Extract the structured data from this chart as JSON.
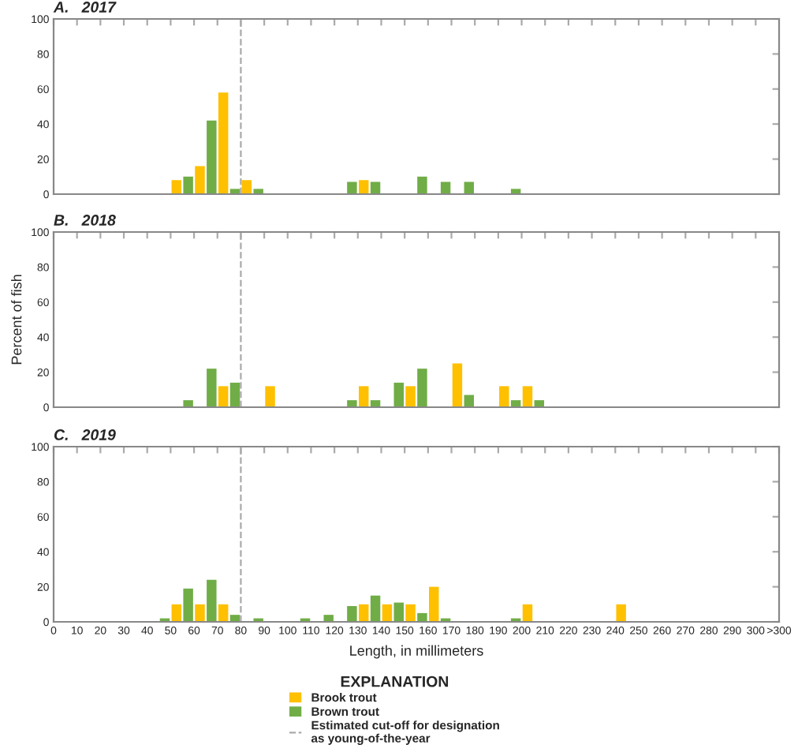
{
  "chart_data": [
    {
      "type": "bar",
      "title": "A.   2017",
      "xlim": [
        0,
        310
      ],
      "xticks": [
        0,
        10,
        20,
        30,
        40,
        50,
        60,
        70,
        80,
        90,
        100,
        110,
        120,
        130,
        140,
        150,
        160,
        170,
        180,
        190,
        200,
        210,
        220,
        230,
        240,
        250,
        260,
        270,
        280,
        290,
        300
      ],
      "ylim": [
        0,
        100
      ],
      "yticks": [
        0,
        20,
        40,
        60,
        80,
        100
      ],
      "tick_labels": "y",
      "legend": false,
      "ref_lines": [
        {
          "axis": "x",
          "value": 80,
          "color": "#aaaaaa",
          "line_style": "dashed"
        }
      ],
      "series": [
        {
          "color": "#ffc000",
          "x": [
            52.5,
            62.5,
            72.5,
            82.5,
            132.5
          ],
          "values": [
            8,
            16,
            58,
            8,
            8
          ]
        },
        {
          "color": "#70ad47",
          "x": [
            57.5,
            67.5,
            77.5,
            87.5,
            127.5,
            137.5,
            157.5,
            167.5,
            177.5,
            197.5
          ],
          "values": [
            10,
            42,
            3,
            3,
            7,
            7,
            10,
            7,
            7,
            3
          ]
        }
      ]
    },
    {
      "type": "bar",
      "title": "B.   2018",
      "ylabel": "Percent of fish",
      "xlim": [
        0,
        310
      ],
      "xticks": [
        0,
        10,
        20,
        30,
        40,
        50,
        60,
        70,
        80,
        90,
        100,
        110,
        120,
        130,
        140,
        150,
        160,
        170,
        180,
        190,
        200,
        210,
        220,
        230,
        240,
        250,
        260,
        270,
        280,
        290,
        300
      ],
      "ylim": [
        0,
        100
      ],
      "yticks": [
        0,
        20,
        40,
        60,
        80,
        100
      ],
      "tick_labels": "y",
      "legend": false,
      "ref_lines": [
        {
          "axis": "x",
          "value": 80,
          "color": "#aaaaaa",
          "line_style": "dashed"
        }
      ],
      "series": [
        {
          "color": "#ffc000",
          "x": [
            72.5,
            92.5,
            132.5,
            152.5,
            172.5,
            192.5,
            202.5
          ],
          "values": [
            12,
            12,
            12,
            12,
            25,
            12,
            12
          ]
        },
        {
          "color": "#70ad47",
          "x": [
            57.5,
            67.5,
            77.5,
            127.5,
            137.5,
            147.5,
            157.5,
            177.5,
            197.5,
            207.5
          ],
          "values": [
            4,
            22,
            14,
            4,
            4,
            14,
            22,
            7,
            4,
            4
          ]
        }
      ]
    },
    {
      "type": "bar",
      "title": "C.   2019",
      "xlabel": "Length, in millimeters",
      "legend_title": "EXPLANATION",
      "xlim": [
        0,
        310
      ],
      "xticks": [
        0,
        10,
        20,
        30,
        40,
        50,
        60,
        70,
        80,
        90,
        100,
        110,
        120,
        130,
        140,
        150,
        160,
        170,
        180,
        190,
        200,
        210,
        220,
        230,
        240,
        250,
        260,
        270,
        280,
        290,
        300,
        {
          "value": 310,
          "label": ">300"
        }
      ],
      "ylim": [
        0,
        100
      ],
      "yticks": [
        0,
        20,
        40,
        60,
        80,
        100
      ],
      "legend": "bottom",
      "ref_lines": [
        {
          "axis": "x",
          "value": 80,
          "label": "Estimated cut-off for designation\nas young-of-the-year",
          "color": "#aaaaaa",
          "line_style": "dashed"
        }
      ],
      "series": [
        {
          "name": "Brook trout",
          "color": "#ffc000",
          "x": [
            52.5,
            62.5,
            72.5,
            132.5,
            142.5,
            152.5,
            162.5,
            202.5,
            242.5
          ],
          "values": [
            10,
            10,
            10,
            10,
            10,
            10,
            20,
            10,
            10
          ]
        },
        {
          "name": "Brown trout",
          "color": "#70ad47",
          "x": [
            47.5,
            57.5,
            67.5,
            77.5,
            87.5,
            107.5,
            117.5,
            127.5,
            137.5,
            147.5,
            157.5,
            167.5,
            197.5
          ],
          "values": [
            2,
            19,
            24,
            4,
            2,
            2,
            4,
            9,
            15,
            11,
            5,
            2,
            2
          ]
        }
      ]
    }
  ]
}
